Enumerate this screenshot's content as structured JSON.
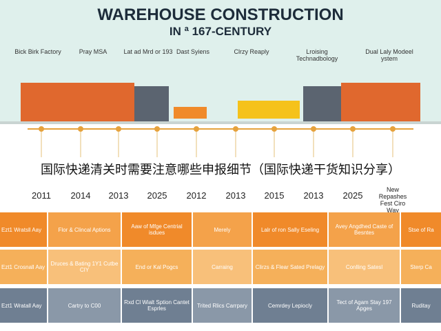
{
  "header": {
    "title": "WAREHOUSE CONSTRUCTION",
    "subtitle": "IN ª 167-CENTURY"
  },
  "top_labels": [
    "Bick Birk Factory",
    "Pray MSA",
    "Lat ad Mrd or 193",
    "Dast Syiens",
    "Clrzy Reaply",
    "Lroising Technadbology",
    "Dual Laly Modeel ystem"
  ],
  "overlay": "国际快递清关时需要注意哪些申报细节（国际快递干货知识分享）",
  "years": [
    "2011",
    "2014",
    "2013",
    "2025",
    "2012",
    "2013",
    "2015",
    "2013",
    "2025",
    "New Repashes Fest Ciro Way"
  ],
  "table": {
    "rows": [
      [
        "Ezt1 Wratsll Aay",
        "Flor & Clincal Aptions",
        "Aaw of Mfge Centrial isdues",
        "Merely",
        "Lalr of ron Sally Eseling",
        "Avey Angdhed Caste of Besntes",
        "Stse of Ra"
      ],
      [
        "Ezt1 Crosnall Aay",
        "Druces & Bating 1Y1 Cutbe CIY",
        "End or Kal Pogcs",
        "Carraing",
        "Clirzs & Flear Sated Prelagy",
        "Conlling Satesl",
        "Sterp Ca"
      ],
      [
        "Ezt1 Wratall Aay",
        "Cartry to C00",
        "Rxd Cl Wialt Sption Cantet Esprles",
        "Trited Rlics Carrpary",
        "Cemrdey Lepiocly",
        "Tect of Agam Stay 197 Apges",
        "Ruditay"
      ]
    ]
  }
}
